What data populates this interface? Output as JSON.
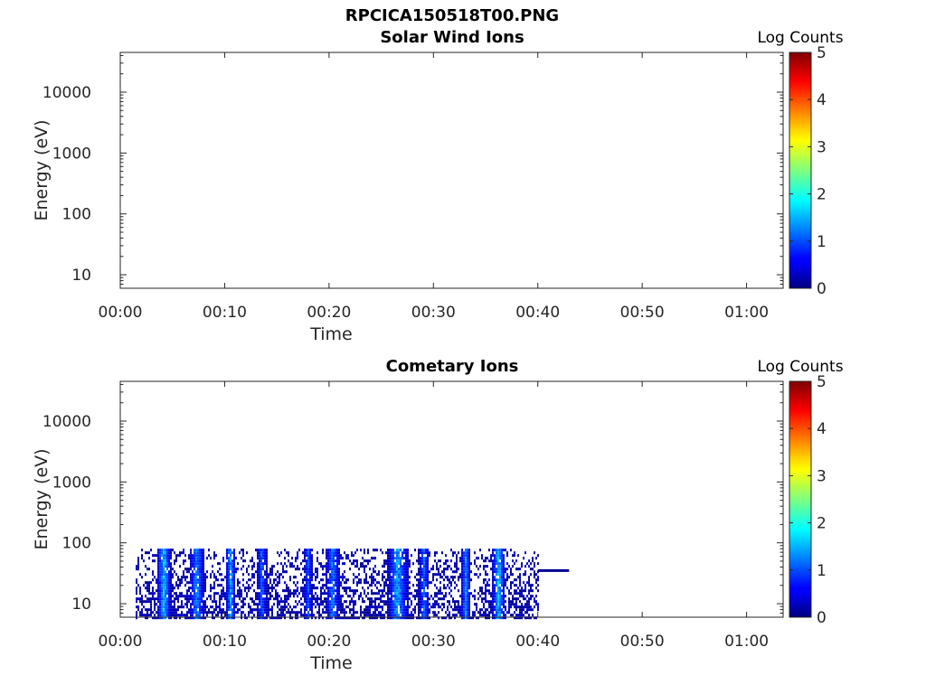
{
  "figure_title": "RPCICA150518T00.PNG",
  "colors": {
    "axis": "#262626",
    "background": "#ffffff"
  },
  "chart_data": [
    {
      "type": "heatmap",
      "title": "Solar Wind Ions",
      "xlabel": "Time",
      "ylabel": "Energy (eV)",
      "x_ticks": [
        "00:00",
        "00:10",
        "00:20",
        "00:30",
        "00:40",
        "00:50",
        "01:00"
      ],
      "x_range_minutes": [
        0,
        63.5
      ],
      "y_ticks": [
        10,
        100,
        1000,
        10000
      ],
      "y_tick_labels": [
        "10",
        "100",
        "1000",
        "10000"
      ],
      "y_scale": "log",
      "ylim": [
        6,
        45000
      ],
      "colorbar": {
        "label": "Log Counts",
        "colormap": "jet",
        "range": [
          0,
          5
        ],
        "ticks": [
          "0",
          "1",
          "2",
          "3",
          "4",
          "5"
        ]
      },
      "data": []
    },
    {
      "type": "heatmap",
      "title": "Cometary Ions",
      "xlabel": "Time",
      "ylabel": "Energy (eV)",
      "x_ticks": [
        "00:00",
        "00:10",
        "00:20",
        "00:30",
        "00:40",
        "00:50",
        "01:00"
      ],
      "x_range_minutes": [
        0,
        63.5
      ],
      "y_ticks": [
        10,
        100,
        1000,
        10000
      ],
      "y_tick_labels": [
        "10",
        "100",
        "1000",
        "10000"
      ],
      "y_scale": "log",
      "ylim": [
        6,
        45000
      ],
      "colorbar": {
        "label": "Log Counts",
        "colormap": "jet",
        "range": [
          0,
          5
        ],
        "ticks": [
          "0",
          "1",
          "2",
          "3",
          "4",
          "5"
        ]
      },
      "energy_range_eV": [
        6,
        80
      ],
      "time_range_minutes": [
        1.5,
        40
      ],
      "intense_bands": [
        {
          "start_min": 3.4,
          "end_min": 4.8,
          "peak_log_counts": 1.8
        },
        {
          "start_min": 6.5,
          "end_min": 8.0,
          "peak_log_counts": 1.4
        },
        {
          "start_min": 10.0,
          "end_min": 11.0,
          "peak_log_counts": 1.5
        },
        {
          "start_min": 13.0,
          "end_min": 14.0,
          "peak_log_counts": 1.2
        },
        {
          "start_min": 17.5,
          "end_min": 18.3,
          "peak_log_counts": 1.1
        },
        {
          "start_min": 19.5,
          "end_min": 21.0,
          "peak_log_counts": 1.3
        },
        {
          "start_min": 25.5,
          "end_min": 27.5,
          "peak_log_counts": 1.6
        },
        {
          "start_min": 28.5,
          "end_min": 29.5,
          "peak_log_counts": 1.2
        },
        {
          "start_min": 32.5,
          "end_min": 33.5,
          "peak_log_counts": 1.4
        },
        {
          "start_min": 35.5,
          "end_min": 36.8,
          "peak_log_counts": 1.7
        }
      ],
      "line_segment": {
        "start_min": 40.0,
        "end_min": 43.0,
        "energy_eV": 35,
        "log_counts": 0.1
      }
    }
  ]
}
